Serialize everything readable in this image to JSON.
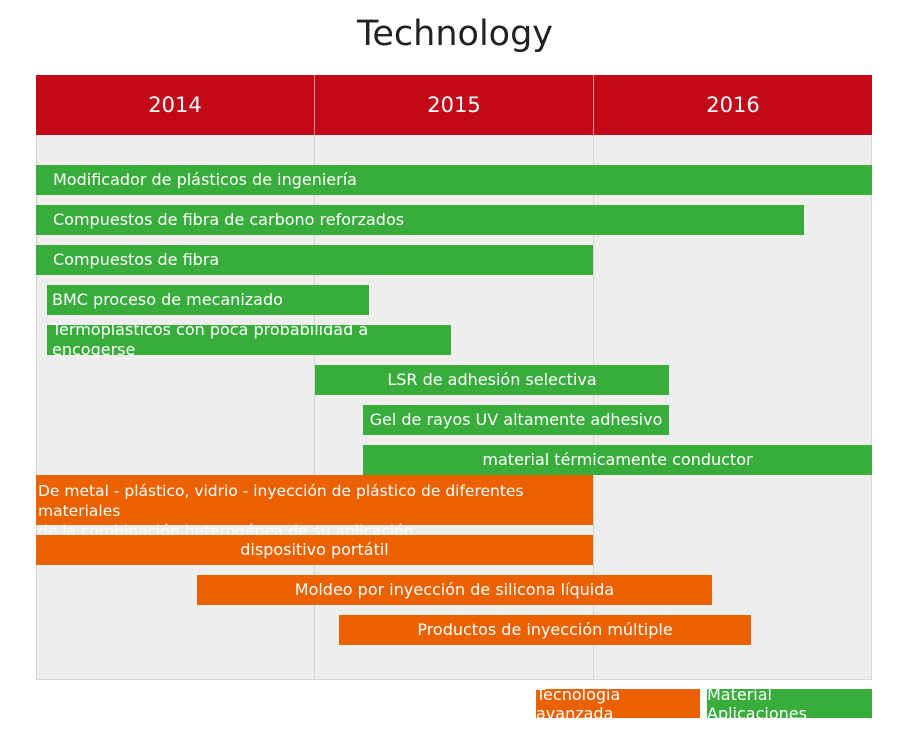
{
  "title": "Technology",
  "years": [
    "2014",
    "2015",
    "2016"
  ],
  "bars": [
    {
      "label": "Modificador de plásticos de ingeniería",
      "category": "material"
    },
    {
      "label": "Compuestos de fibra de carbono reforzados",
      "category": "material"
    },
    {
      "label": "Compuestos de fibra",
      "category": "material"
    },
    {
      "label": "BMC proceso de mecanizado",
      "category": "material"
    },
    {
      "label": "Termoplásticos con poca probabilidad a encogerse",
      "category": "material"
    },
    {
      "label": "LSR de adhesión selectiva",
      "category": "material"
    },
    {
      "label": "Gel de rayos UV altamente adhesivo",
      "category": "material"
    },
    {
      "label": "material térmicamente conductor",
      "category": "material"
    },
    {
      "label": "De metal - plástico, vidrio - inyección de plástico de diferentes materiales\n de la combinación heterogénea de su aplicación",
      "category": "technology"
    },
    {
      "label": "dispositivo portátil",
      "category": "technology"
    },
    {
      "label": "Moldeo por inyección de silicona líquida",
      "category": "technology"
    },
    {
      "label": "Productos de inyección múltiple",
      "category": "technology"
    }
  ],
  "legend": {
    "technology": "Tecnología avanzada",
    "material": "Material Aplicaciones"
  },
  "colors": {
    "header": "#c30817",
    "material": "#38ad3b",
    "technology": "#eb6100",
    "background": "#eeeeee"
  }
}
